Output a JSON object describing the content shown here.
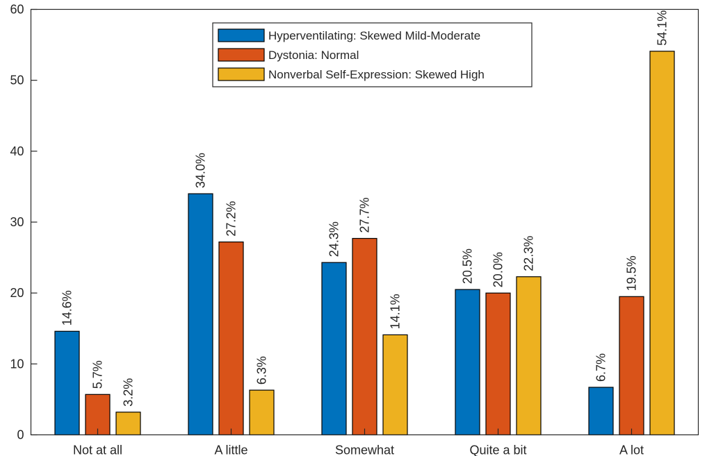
{
  "chart_data": {
    "type": "bar",
    "categories": [
      "Not at all",
      "A little",
      "Somewhat",
      "Quite a bit",
      "A lot"
    ],
    "series": [
      {
        "name": "Hyperventilating: Skewed Mild-Moderate",
        "color": "#0072BD",
        "values": [
          14.6,
          34.0,
          24.3,
          20.5,
          6.7
        ],
        "labels": [
          "14.6%",
          "34.0%",
          "24.3%",
          "20.5%",
          "6.7%"
        ]
      },
      {
        "name": "Dystonia: Normal",
        "color": "#D95319",
        "values": [
          5.7,
          27.2,
          27.7,
          20.0,
          19.5
        ],
        "labels": [
          "5.7%",
          "27.2%",
          "27.7%",
          "20.0%",
          "19.5%"
        ]
      },
      {
        "name": "Nonverbal Self-Expression: Skewed High",
        "color": "#EDB120",
        "values": [
          3.2,
          6.3,
          14.1,
          22.3,
          54.1
        ],
        "labels": [
          "3.2%",
          "6.3%",
          "14.1%",
          "22.3%",
          "54.1%"
        ]
      }
    ],
    "ylim": [
      0,
      60
    ],
    "yticks": [
      0,
      10,
      20,
      30,
      40,
      50,
      60
    ],
    "legend_position": "top-center",
    "grid": false
  }
}
